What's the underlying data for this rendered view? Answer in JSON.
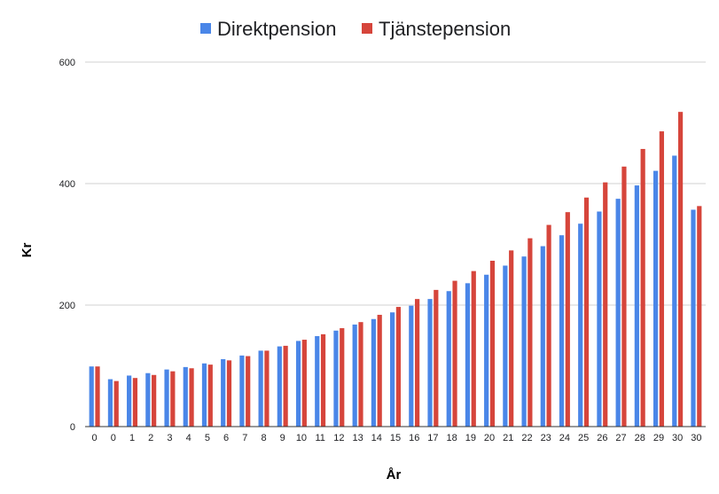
{
  "chart_data": {
    "type": "bar",
    "xlabel": "År",
    "ylabel": "Kr",
    "ylim": [
      0,
      600
    ],
    "yticks": [
      "0",
      "200",
      "400",
      "600"
    ],
    "grid": true,
    "legend_position": "top",
    "categories": [
      "0",
      "0",
      "1",
      "2",
      "3",
      "4",
      "5",
      "6",
      "7",
      "8",
      "9",
      "10",
      "11",
      "12",
      "13",
      "14",
      "15",
      "16",
      "17",
      "18",
      "19",
      "20",
      "21",
      "22",
      "23",
      "24",
      "25",
      "26",
      "27",
      "28",
      "29",
      "30",
      "30"
    ],
    "series": [
      {
        "name": "Direktpension",
        "color": "#4a86e8",
        "values": [
          99,
          78,
          84,
          88,
          94,
          98,
          104,
          111,
          117,
          125,
          132,
          141,
          149,
          158,
          168,
          177,
          188,
          199,
          210,
          223,
          236,
          250,
          265,
          280,
          297,
          315,
          334,
          354,
          375,
          397,
          421,
          446,
          357
        ]
      },
      {
        "name": "Tjänstepension",
        "color": "#d6453b",
        "values": [
          99,
          75,
          80,
          85,
          91,
          96,
          102,
          109,
          116,
          125,
          133,
          143,
          152,
          162,
          172,
          184,
          197,
          210,
          225,
          240,
          256,
          273,
          290,
          310,
          332,
          353,
          377,
          402,
          428,
          457,
          486,
          518,
          363
        ]
      }
    ]
  }
}
